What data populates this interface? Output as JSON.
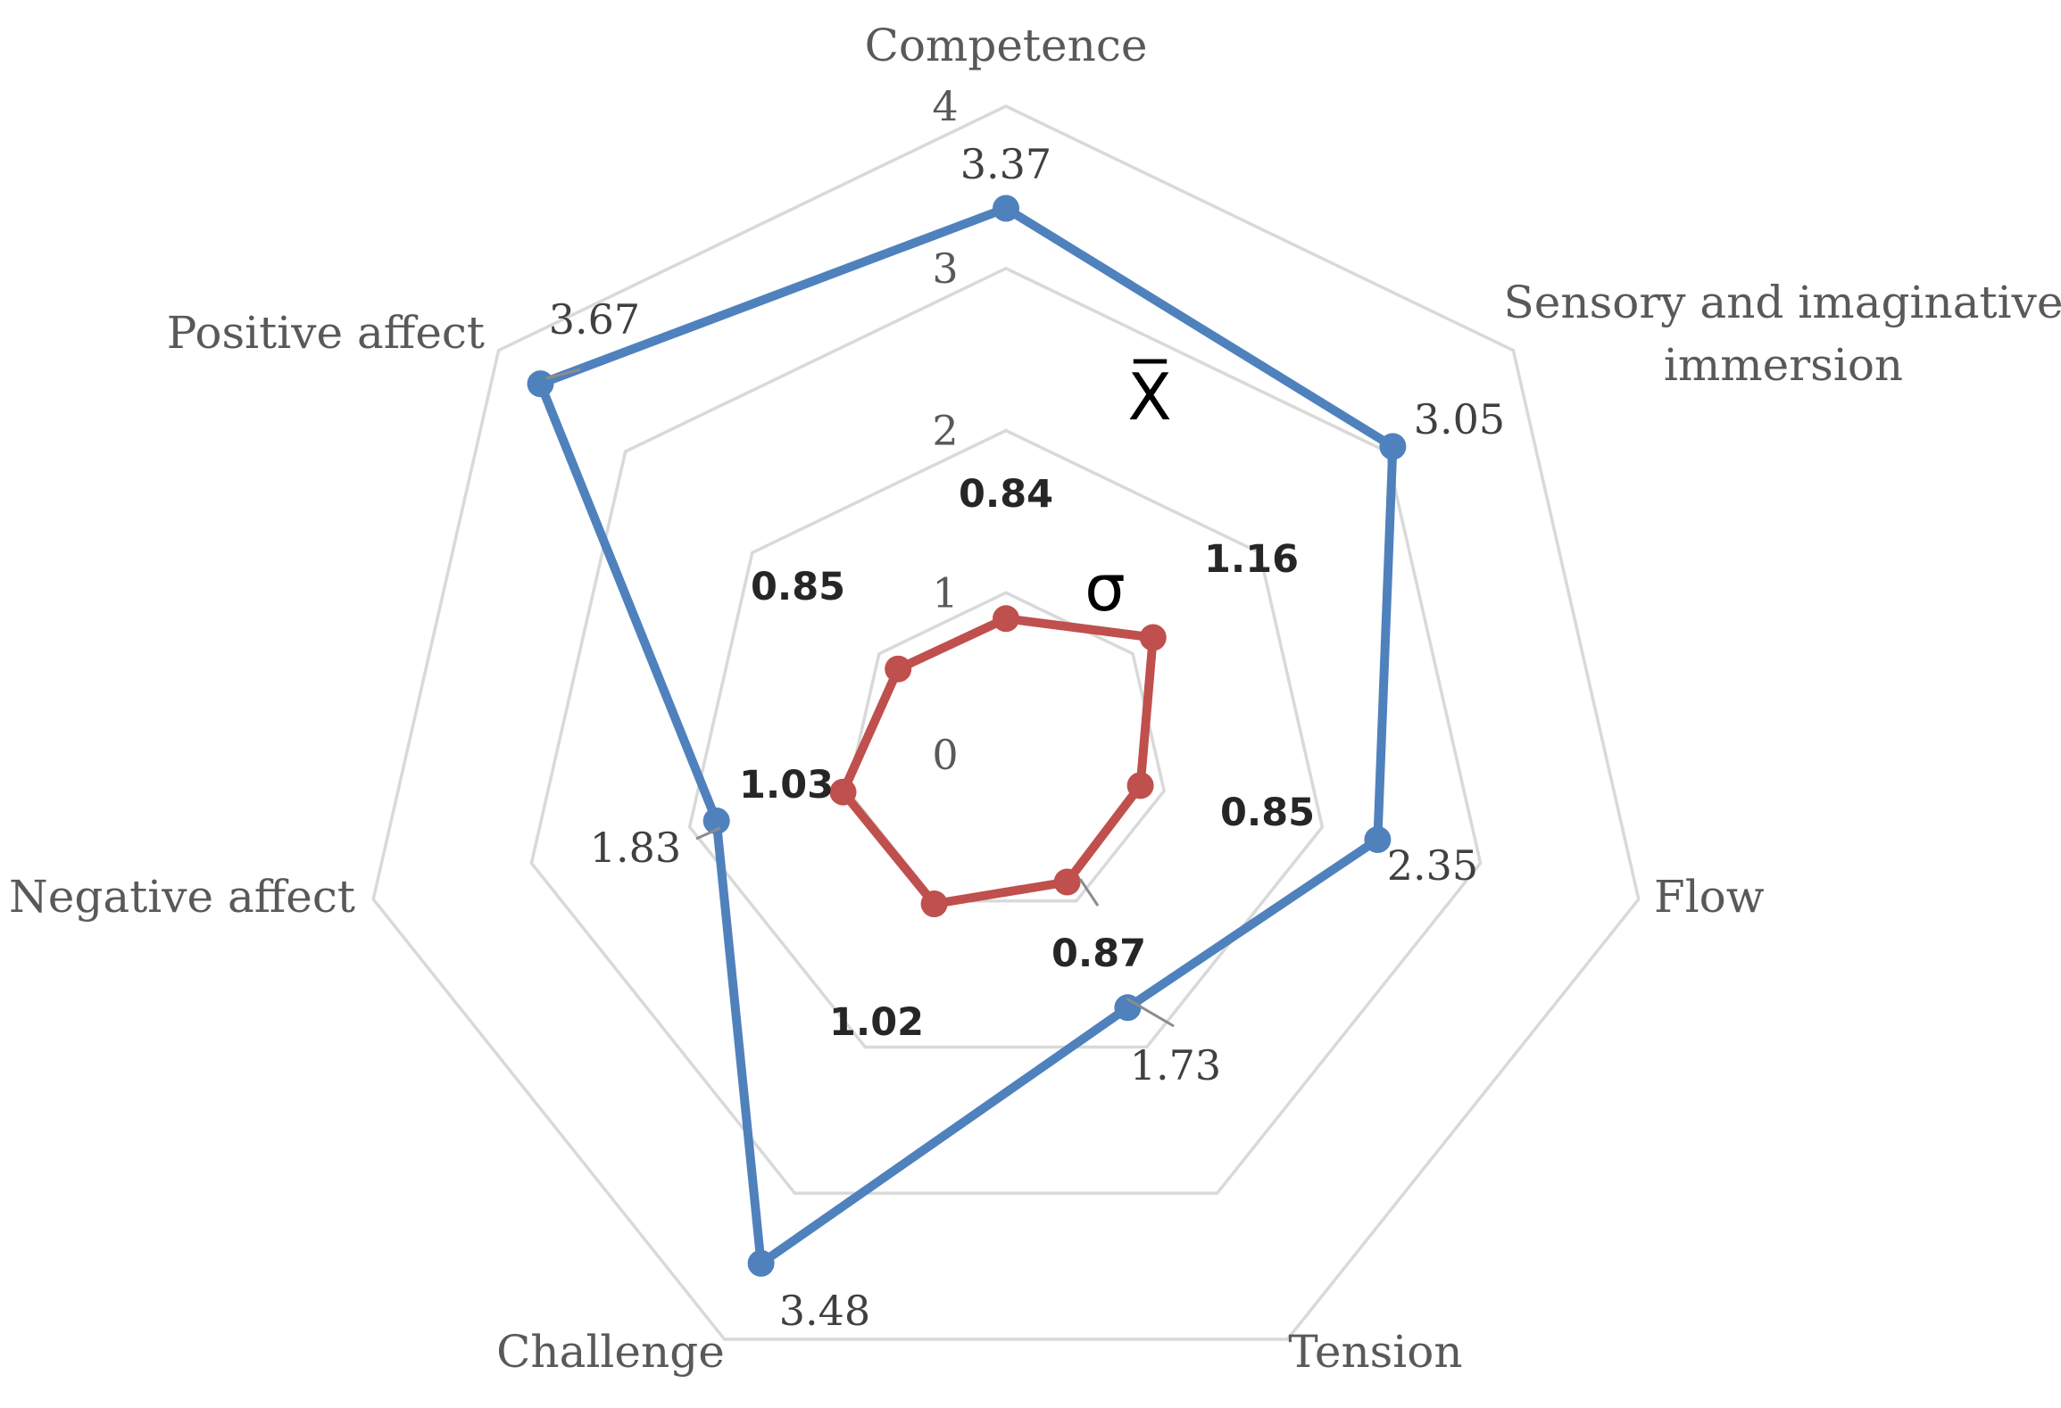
{
  "chart_data": {
    "type": "radar",
    "axes": [
      "Competence",
      "Sensory and imaginative immersion",
      "Flow",
      "Tension",
      "Challenge",
      "Negative affect",
      "Positive affect"
    ],
    "axis_label_lines": [
      [
        "Competence"
      ],
      [
        "Sensory and imaginative",
        "immersion"
      ],
      [
        "Flow"
      ],
      [
        "Tension"
      ],
      [
        "Challenge"
      ],
      [
        "Negative affect"
      ],
      [
        "Positive affect"
      ]
    ],
    "rlim": [
      0,
      4
    ],
    "ticks": [
      "0",
      "1",
      "2",
      "3",
      "4"
    ],
    "series": [
      {
        "symbol": "X̅",
        "color": "#4f81bd",
        "values": [
          3.37,
          3.05,
          2.35,
          1.73,
          3.48,
          1.83,
          3.67
        ],
        "labels": [
          "3.37",
          "3.05",
          "2.35",
          "1.73",
          "3.48",
          "1.83",
          "3.67"
        ]
      },
      {
        "symbol": "σ",
        "color": "#c0504d",
        "values": [
          0.84,
          1.16,
          0.85,
          0.87,
          1.02,
          1.03,
          0.85
        ],
        "labels": [
          "0.84",
          "1.16",
          "0.85",
          "0.87",
          "1.02",
          "1.03",
          "0.85"
        ]
      }
    ],
    "grid": true
  }
}
